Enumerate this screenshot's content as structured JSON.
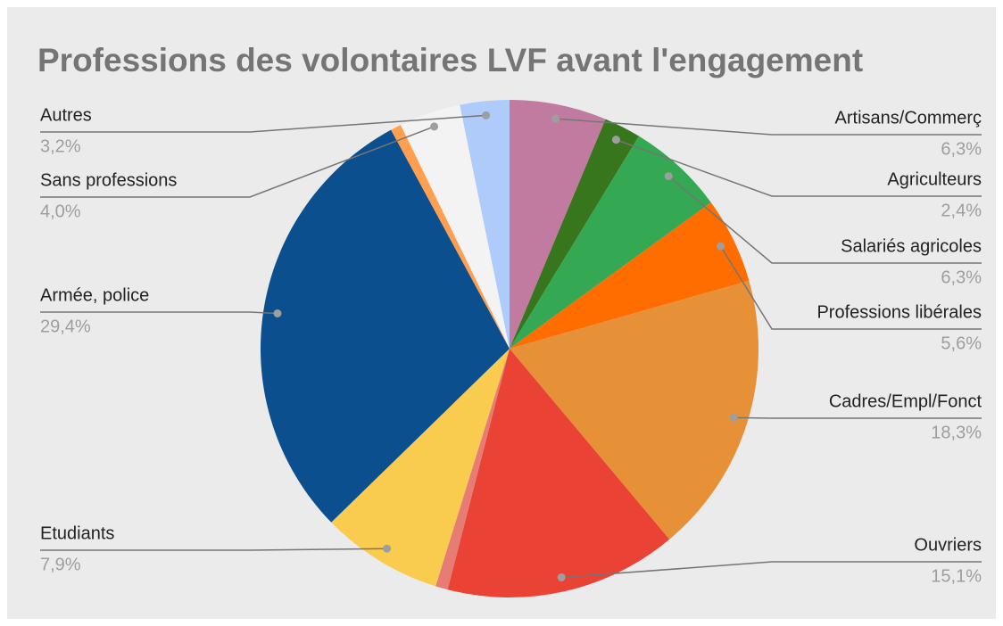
{
  "chart_data": {
    "type": "pie",
    "title": "Professions des volontaires LVF avant l'engagement",
    "categories": [
      "Artisans/Commerç",
      "Agriculteurs",
      "Salariés agricoles",
      "Professions libérales",
      "Cadres/Empl/Fonct",
      "Ouvriers",
      null,
      "Etudiants",
      "Armée, police",
      null,
      "Sans professions",
      "Autres"
    ],
    "values": [
      6.3,
      2.4,
      6.3,
      5.6,
      18.3,
      15.1,
      0.8,
      7.9,
      29.4,
      0.7,
      4.0,
      3.2
    ],
    "value_labels": [
      "6,3%",
      "2,4%",
      "6,3%",
      "5,6%",
      "18,3%",
      "15,1%",
      null,
      "7,9%",
      "29,4%",
      null,
      "4,0%",
      "3,2%"
    ],
    "colors": [
      "#c27ba0",
      "#38761d",
      "#34a853",
      "#ff6d01",
      "#e69138",
      "#ea4335",
      "#e67c73",
      "#f9cb4f",
      "#0b4f8f",
      "#ff9f4f",
      "#f3f3f3",
      "#aecbfa"
    ]
  }
}
